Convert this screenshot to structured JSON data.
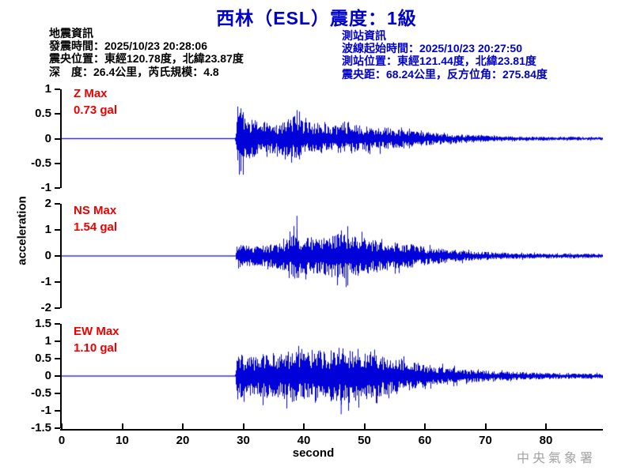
{
  "title": "西林（ESL）震度：1級",
  "earthquake_info": {
    "heading": "地震資訊",
    "lines": [
      "發震時間：2025/10/23 20:28:06",
      "震央位置：東經120.78度，北緯23.87度",
      "深　度：26.4公里，芮氏規模：4.8"
    ]
  },
  "station_info": {
    "heading": "測站資訊",
    "lines": [
      "波線起始時間：2025/10/23 20:27:50",
      "測站位置：東經121.44度，北緯23.81度",
      "震央距：68.24公里，反方位角：275.84度"
    ]
  },
  "watermark": "中央氣象署",
  "colors": {
    "title_blue": "#0000CC",
    "station_info_blue": "#0000CC",
    "max_label_red": "#EE0000",
    "waveform_blue": "#0000D8",
    "axis_black": "#000000",
    "watermark_gray": "#A3A3A3"
  },
  "chart_data": {
    "type": "line",
    "subtype": "seismogram-3-channel",
    "title": "西林（ESL）震度：1級",
    "xlabel": "second",
    "ylabel": "acceleration",
    "unit": "gal",
    "x_range": [
      0,
      89.4
    ],
    "x_ticks": [
      0,
      10,
      20,
      30,
      40,
      50,
      60,
      70,
      80
    ],
    "event_onset_s": 28.7,
    "grid": false,
    "legend": "none",
    "channels": [
      {
        "name": "Z",
        "max_label": "Z Max",
        "max_value": "0.73 gal",
        "max_gal": 0.73,
        "peak": {
          "t": 29.3,
          "value": -0.73
        },
        "ylim": [
          -1,
          1
        ],
        "y_ticks": [
          1,
          0.5,
          0,
          -0.5,
          -1
        ],
        "envelope": [
          [
            0,
            0.004
          ],
          [
            28.6,
            0.004
          ],
          [
            28.9,
            0.62
          ],
          [
            29.3,
            0.73
          ],
          [
            30.5,
            0.42
          ],
          [
            33,
            0.33
          ],
          [
            36,
            0.3
          ],
          [
            38.8,
            0.5
          ],
          [
            40,
            0.35
          ],
          [
            44,
            0.3
          ],
          [
            48,
            0.28
          ],
          [
            52,
            0.24
          ],
          [
            56,
            0.19
          ],
          [
            60,
            0.14
          ],
          [
            64,
            0.1
          ],
          [
            68,
            0.07
          ],
          [
            72,
            0.05
          ],
          [
            78,
            0.04
          ],
          [
            89.4,
            0.03
          ]
        ]
      },
      {
        "name": "NS",
        "max_label": "NS Max",
        "max_value": "1.54 gal",
        "max_gal": 1.54,
        "peak": {
          "t": 38.8,
          "value": 1.54
        },
        "ylim": [
          -2,
          2
        ],
        "y_ticks": [
          2,
          1,
          0,
          -1,
          -2
        ],
        "envelope": [
          [
            0,
            0.008
          ],
          [
            28.6,
            0.008
          ],
          [
            29,
            0.5
          ],
          [
            30,
            0.42
          ],
          [
            33,
            0.4
          ],
          [
            36,
            0.5
          ],
          [
            38.3,
            0.85
          ],
          [
            38.8,
            1.1
          ],
          [
            39.5,
            0.65
          ],
          [
            41,
            0.75
          ],
          [
            43,
            0.7
          ],
          [
            45,
            0.85
          ],
          [
            47,
            0.9
          ],
          [
            49,
            0.8
          ],
          [
            51,
            0.65
          ],
          [
            53,
            0.58
          ],
          [
            55,
            0.52
          ],
          [
            58,
            0.45
          ],
          [
            60,
            0.36
          ],
          [
            64,
            0.26
          ],
          [
            68,
            0.18
          ],
          [
            72,
            0.14
          ],
          [
            78,
            0.1
          ],
          [
            89.4,
            0.08
          ]
        ]
      },
      {
        "name": "EW",
        "max_label": "EW Max",
        "max_value": "1.10 gal",
        "max_gal": 1.1,
        "peak": {
          "t": 46.1,
          "value": -1.1
        },
        "ylim": [
          -1.5,
          1.5
        ],
        "y_ticks": [
          1.5,
          1,
          0.5,
          0,
          -0.5,
          -1,
          -1.5
        ],
        "envelope": [
          [
            0,
            0.006
          ],
          [
            28.6,
            0.006
          ],
          [
            29,
            0.7
          ],
          [
            30,
            0.6
          ],
          [
            32,
            0.55
          ],
          [
            34,
            0.7
          ],
          [
            36,
            0.62
          ],
          [
            38,
            0.75
          ],
          [
            40,
            0.68
          ],
          [
            42,
            0.8
          ],
          [
            44,
            0.72
          ],
          [
            46,
            0.85
          ],
          [
            48,
            0.78
          ],
          [
            50,
            0.7
          ],
          [
            52,
            0.62
          ],
          [
            54,
            0.55
          ],
          [
            56,
            0.5
          ],
          [
            58,
            0.42
          ],
          [
            60,
            0.34
          ],
          [
            63,
            0.26
          ],
          [
            66,
            0.21
          ],
          [
            70,
            0.16
          ],
          [
            75,
            0.12
          ],
          [
            80,
            0.09
          ],
          [
            89.4,
            0.07
          ]
        ]
      }
    ]
  }
}
